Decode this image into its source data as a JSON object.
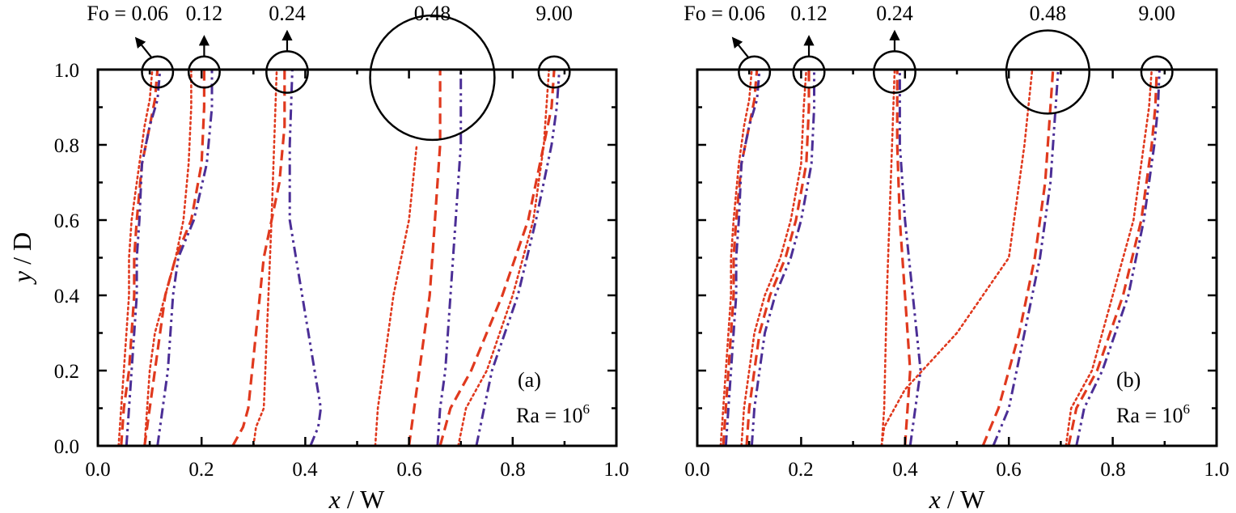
{
  "figure": {
    "colors": {
      "dotted": "#e0391e",
      "dashed": "#e0391e",
      "dashdot": "#4b2e96",
      "frame": "#000000"
    }
  },
  "chart_data": [
    {
      "type": "line",
      "panel_label": "(a)",
      "annotation": {
        "text": "Ra = 10",
        "sup": "6"
      },
      "xlabel": {
        "var": "x",
        "rest": " / W"
      },
      "ylabel": {
        "var": "y",
        "rest": " / D"
      },
      "xlim": [
        0,
        1
      ],
      "ylim": [
        0,
        1
      ],
      "xticks": [
        "0.0",
        "0.2",
        "0.4",
        "0.6",
        "0.8",
        "1.0"
      ],
      "yticks": [
        "0.0",
        "0.2",
        "0.4",
        "0.6",
        "0.8",
        "1.0"
      ],
      "fo_labels": [
        "Fo = 0.06",
        "0.12",
        "0.24",
        "0.48",
        "9.00"
      ],
      "fo_callouts": [
        {
          "label": "Fo = 0.06",
          "x": 0.115,
          "r": 0.03,
          "arrow": "left"
        },
        {
          "label": "0.12",
          "x": 0.205,
          "r": 0.03,
          "arrow": "up"
        },
        {
          "label": "0.24",
          "x": 0.365,
          "r": 0.04,
          "arrow": "up"
        },
        {
          "label": "0.48",
          "x": 0.645,
          "r": 0.12,
          "arrow": "none"
        },
        {
          "label": "9.00",
          "x": 0.88,
          "r": 0.03,
          "arrow": "none"
        }
      ],
      "series": [
        {
          "name": "Fo=0.06 dotted",
          "style": "dotted",
          "x": [
            0.04,
            0.045,
            0.05,
            0.055,
            0.06,
            0.06,
            0.065,
            0.08,
            0.09,
            0.1,
            0.105
          ],
          "y": [
            0.0,
            0.1,
            0.2,
            0.3,
            0.4,
            0.5,
            0.6,
            0.75,
            0.85,
            0.92,
            1.0
          ]
        },
        {
          "name": "Fo=0.06 dashed",
          "style": "dashed",
          "x": [
            0.045,
            0.05,
            0.06,
            0.065,
            0.07,
            0.07,
            0.075,
            0.085,
            0.1,
            0.11,
            0.115
          ],
          "y": [
            0.0,
            0.1,
            0.2,
            0.3,
            0.4,
            0.5,
            0.6,
            0.75,
            0.85,
            0.92,
            1.0
          ]
        },
        {
          "name": "Fo=0.06 dashdot",
          "style": "dashdot",
          "x": [
            0.055,
            0.06,
            0.065,
            0.07,
            0.075,
            0.075,
            0.08,
            0.085,
            0.1,
            0.115,
            0.12
          ],
          "y": [
            0.0,
            0.1,
            0.2,
            0.3,
            0.4,
            0.5,
            0.6,
            0.75,
            0.85,
            0.92,
            1.0
          ]
        },
        {
          "name": "Fo=0.12 dotted",
          "style": "dotted",
          "x": [
            0.09,
            0.095,
            0.1,
            0.11,
            0.13,
            0.15,
            0.165,
            0.175,
            0.18,
            0.18
          ],
          "y": [
            0.0,
            0.1,
            0.2,
            0.3,
            0.4,
            0.5,
            0.6,
            0.75,
            0.9,
            1.0
          ]
        },
        {
          "name": "Fo=0.12 dashed",
          "style": "dashed",
          "x": [
            0.09,
            0.1,
            0.11,
            0.12,
            0.13,
            0.15,
            0.18,
            0.2,
            0.205,
            0.205
          ],
          "y": [
            0.0,
            0.1,
            0.2,
            0.3,
            0.4,
            0.5,
            0.6,
            0.75,
            0.9,
            1.0
          ]
        },
        {
          "name": "Fo=0.12 dashdot",
          "style": "dashdot",
          "x": [
            0.115,
            0.125,
            0.135,
            0.14,
            0.145,
            0.155,
            0.185,
            0.21,
            0.22,
            0.22
          ],
          "y": [
            0.0,
            0.1,
            0.2,
            0.3,
            0.4,
            0.5,
            0.6,
            0.75,
            0.9,
            1.0
          ]
        },
        {
          "name": "Fo=0.24 dotted",
          "style": "dotted",
          "x": [
            0.3,
            0.305,
            0.32,
            0.335,
            0.34,
            0.345
          ],
          "y": [
            0.0,
            0.05,
            0.1,
            0.6,
            0.8,
            1.0
          ]
        },
        {
          "name": "Fo=0.24 dashed",
          "style": "dashed",
          "x": [
            0.26,
            0.28,
            0.29,
            0.32,
            0.35,
            0.36,
            0.36
          ],
          "y": [
            0.0,
            0.05,
            0.1,
            0.5,
            0.7,
            0.85,
            1.0
          ]
        },
        {
          "name": "Fo=0.24 dashdot",
          "style": "dashdot",
          "x": [
            0.41,
            0.425,
            0.43,
            0.37,
            0.37,
            0.375
          ],
          "y": [
            0.0,
            0.05,
            0.1,
            0.6,
            0.8,
            1.0
          ]
        },
        {
          "name": "Fo=0.48 dotted",
          "style": "dotted",
          "x": [
            0.535,
            0.54,
            0.55,
            0.57,
            0.6,
            0.615
          ],
          "y": [
            0.0,
            0.1,
            0.2,
            0.4,
            0.6,
            0.8
          ]
        },
        {
          "name": "Fo=0.48 dashed",
          "style": "dashed",
          "x": [
            0.6,
            0.61,
            0.62,
            0.64,
            0.65,
            0.66,
            0.66
          ],
          "y": [
            0.0,
            0.1,
            0.2,
            0.4,
            0.6,
            0.8,
            1.0
          ]
        },
        {
          "name": "Fo=0.48 dashdot",
          "style": "dashdot",
          "x": [
            0.655,
            0.66,
            0.67,
            0.68,
            0.69,
            0.7,
            0.7
          ],
          "y": [
            0.0,
            0.1,
            0.2,
            0.4,
            0.6,
            0.8,
            1.0
          ]
        },
        {
          "name": "Fo=9.00 dotted",
          "style": "dotted",
          "x": [
            0.695,
            0.71,
            0.75,
            0.8,
            0.84,
            0.86,
            0.865,
            0.87
          ],
          "y": [
            0.0,
            0.1,
            0.2,
            0.4,
            0.6,
            0.8,
            0.9,
            1.0
          ]
        },
        {
          "name": "Fo=9.00 dashed",
          "style": "dashed",
          "x": [
            0.66,
            0.68,
            0.72,
            0.78,
            0.83,
            0.86,
            0.875,
            0.88
          ],
          "y": [
            0.0,
            0.1,
            0.2,
            0.4,
            0.6,
            0.8,
            0.9,
            1.0
          ]
        },
        {
          "name": "Fo=9.00 dashdot",
          "style": "dashdot",
          "x": [
            0.73,
            0.745,
            0.76,
            0.81,
            0.845,
            0.875,
            0.885,
            0.89
          ],
          "y": [
            0.0,
            0.1,
            0.2,
            0.4,
            0.6,
            0.8,
            0.9,
            1.0
          ]
        }
      ]
    },
    {
      "type": "line",
      "panel_label": "(b)",
      "annotation": {
        "text": "Ra = 10",
        "sup": "6"
      },
      "xlabel": {
        "var": "x",
        "rest": " / W"
      },
      "ylabel": {
        "var": "y",
        "rest": " / D"
      },
      "xlim": [
        0,
        1
      ],
      "ylim": [
        0,
        1
      ],
      "xticks": [
        "0.0",
        "0.2",
        "0.4",
        "0.6",
        "0.8",
        "1.0"
      ],
      "yticks": [
        "0.0",
        "0.2",
        "0.4",
        "0.6",
        "0.8",
        "1.0"
      ],
      "fo_labels": [
        "Fo = 0.06",
        "0.12",
        "0.24",
        "0.48",
        "9.00"
      ],
      "fo_callouts": [
        {
          "label": "Fo = 0.06",
          "x": 0.11,
          "r": 0.03,
          "arrow": "left"
        },
        {
          "label": "0.12",
          "x": 0.215,
          "r": 0.03,
          "arrow": "up"
        },
        {
          "label": "0.24",
          "x": 0.38,
          "r": 0.04,
          "arrow": "up"
        },
        {
          "label": "0.48",
          "x": 0.675,
          "r": 0.08,
          "arrow": "none"
        },
        {
          "label": "9.00",
          "x": 0.885,
          "r": 0.03,
          "arrow": "none"
        }
      ],
      "series": [
        {
          "name": "Fo=0.06 dotted",
          "style": "dotted",
          "x": [
            0.045,
            0.05,
            0.055,
            0.06,
            0.065,
            0.065,
            0.07,
            0.08,
            0.09,
            0.1,
            0.105
          ],
          "y": [
            0.0,
            0.1,
            0.2,
            0.3,
            0.4,
            0.5,
            0.6,
            0.75,
            0.85,
            0.92,
            1.0
          ]
        },
        {
          "name": "Fo=0.06 dashed",
          "style": "dashed",
          "x": [
            0.05,
            0.055,
            0.06,
            0.065,
            0.07,
            0.07,
            0.075,
            0.085,
            0.1,
            0.11,
            0.115
          ],
          "y": [
            0.0,
            0.1,
            0.2,
            0.3,
            0.4,
            0.5,
            0.6,
            0.75,
            0.85,
            0.92,
            1.0
          ]
        },
        {
          "name": "Fo=0.06 dashdot",
          "style": "dashdot",
          "x": [
            0.055,
            0.06,
            0.065,
            0.07,
            0.075,
            0.075,
            0.08,
            0.085,
            0.1,
            0.115,
            0.12
          ],
          "y": [
            0.0,
            0.1,
            0.2,
            0.3,
            0.4,
            0.5,
            0.6,
            0.75,
            0.85,
            0.92,
            1.0
          ]
        },
        {
          "name": "Fo=0.12 dotted",
          "style": "dotted",
          "x": [
            0.085,
            0.09,
            0.1,
            0.11,
            0.13,
            0.16,
            0.18,
            0.2,
            0.205,
            0.21
          ],
          "y": [
            0.0,
            0.1,
            0.2,
            0.3,
            0.4,
            0.5,
            0.6,
            0.75,
            0.9,
            1.0
          ]
        },
        {
          "name": "Fo=0.12 dashed",
          "style": "dashed",
          "x": [
            0.095,
            0.1,
            0.11,
            0.12,
            0.14,
            0.17,
            0.19,
            0.21,
            0.215,
            0.215
          ],
          "y": [
            0.0,
            0.1,
            0.2,
            0.3,
            0.4,
            0.5,
            0.6,
            0.75,
            0.9,
            1.0
          ]
        },
        {
          "name": "Fo=0.12 dashdot",
          "style": "dashdot",
          "x": [
            0.105,
            0.11,
            0.12,
            0.13,
            0.15,
            0.18,
            0.2,
            0.22,
            0.225,
            0.225
          ],
          "y": [
            0.0,
            0.1,
            0.2,
            0.3,
            0.4,
            0.5,
            0.6,
            0.75,
            0.9,
            1.0
          ]
        },
        {
          "name": "Fo=0.24 dotted",
          "style": "dotted",
          "x": [
            0.355,
            0.36,
            0.365,
            0.375,
            0.38
          ],
          "y": [
            0.0,
            0.1,
            0.4,
            0.8,
            1.0
          ]
        },
        {
          "name": "Fo=0.24 dashed",
          "style": "dashed",
          "x": [
            0.4,
            0.405,
            0.41,
            0.39,
            0.385,
            0.385
          ],
          "y": [
            0.0,
            0.1,
            0.2,
            0.6,
            0.8,
            1.0
          ]
        },
        {
          "name": "Fo=0.24 dashdot",
          "style": "dashdot",
          "x": [
            0.41,
            0.42,
            0.43,
            0.4,
            0.39,
            0.39
          ],
          "y": [
            0.0,
            0.1,
            0.2,
            0.6,
            0.8,
            1.0
          ]
        },
        {
          "name": "Fo=0.48 dotted",
          "style": "dotted",
          "x": [
            0.355,
            0.36,
            0.4,
            0.5,
            0.6,
            0.63,
            0.645
          ],
          "y": [
            0.0,
            0.05,
            0.15,
            0.3,
            0.5,
            0.8,
            1.0
          ]
        },
        {
          "name": "Fo=0.48 dashed",
          "style": "dashed",
          "x": [
            0.55,
            0.58,
            0.62,
            0.65,
            0.67,
            0.68,
            0.685
          ],
          "y": [
            0.0,
            0.1,
            0.3,
            0.5,
            0.7,
            0.9,
            1.0
          ]
        },
        {
          "name": "Fo=0.48 dashdot",
          "style": "dashdot",
          "x": [
            0.57,
            0.6,
            0.63,
            0.66,
            0.68,
            0.69,
            0.695
          ],
          "y": [
            0.0,
            0.1,
            0.3,
            0.5,
            0.7,
            0.9,
            1.0
          ]
        },
        {
          "name": "Fo=9.00 dotted",
          "style": "dotted",
          "x": [
            0.71,
            0.72,
            0.76,
            0.8,
            0.84,
            0.86,
            0.87,
            0.875
          ],
          "y": [
            0.0,
            0.1,
            0.2,
            0.4,
            0.6,
            0.8,
            0.9,
            1.0
          ]
        },
        {
          "name": "Fo=9.00 dashed",
          "style": "dashed",
          "x": [
            0.715,
            0.73,
            0.77,
            0.82,
            0.855,
            0.875,
            0.882,
            0.885
          ],
          "y": [
            0.0,
            0.1,
            0.2,
            0.4,
            0.6,
            0.8,
            0.9,
            1.0
          ]
        },
        {
          "name": "Fo=9.00 dashdot",
          "style": "dashdot",
          "x": [
            0.73,
            0.745,
            0.78,
            0.83,
            0.86,
            0.88,
            0.887,
            0.89
          ],
          "y": [
            0.0,
            0.1,
            0.2,
            0.4,
            0.6,
            0.8,
            0.9,
            1.0
          ]
        }
      ]
    }
  ]
}
